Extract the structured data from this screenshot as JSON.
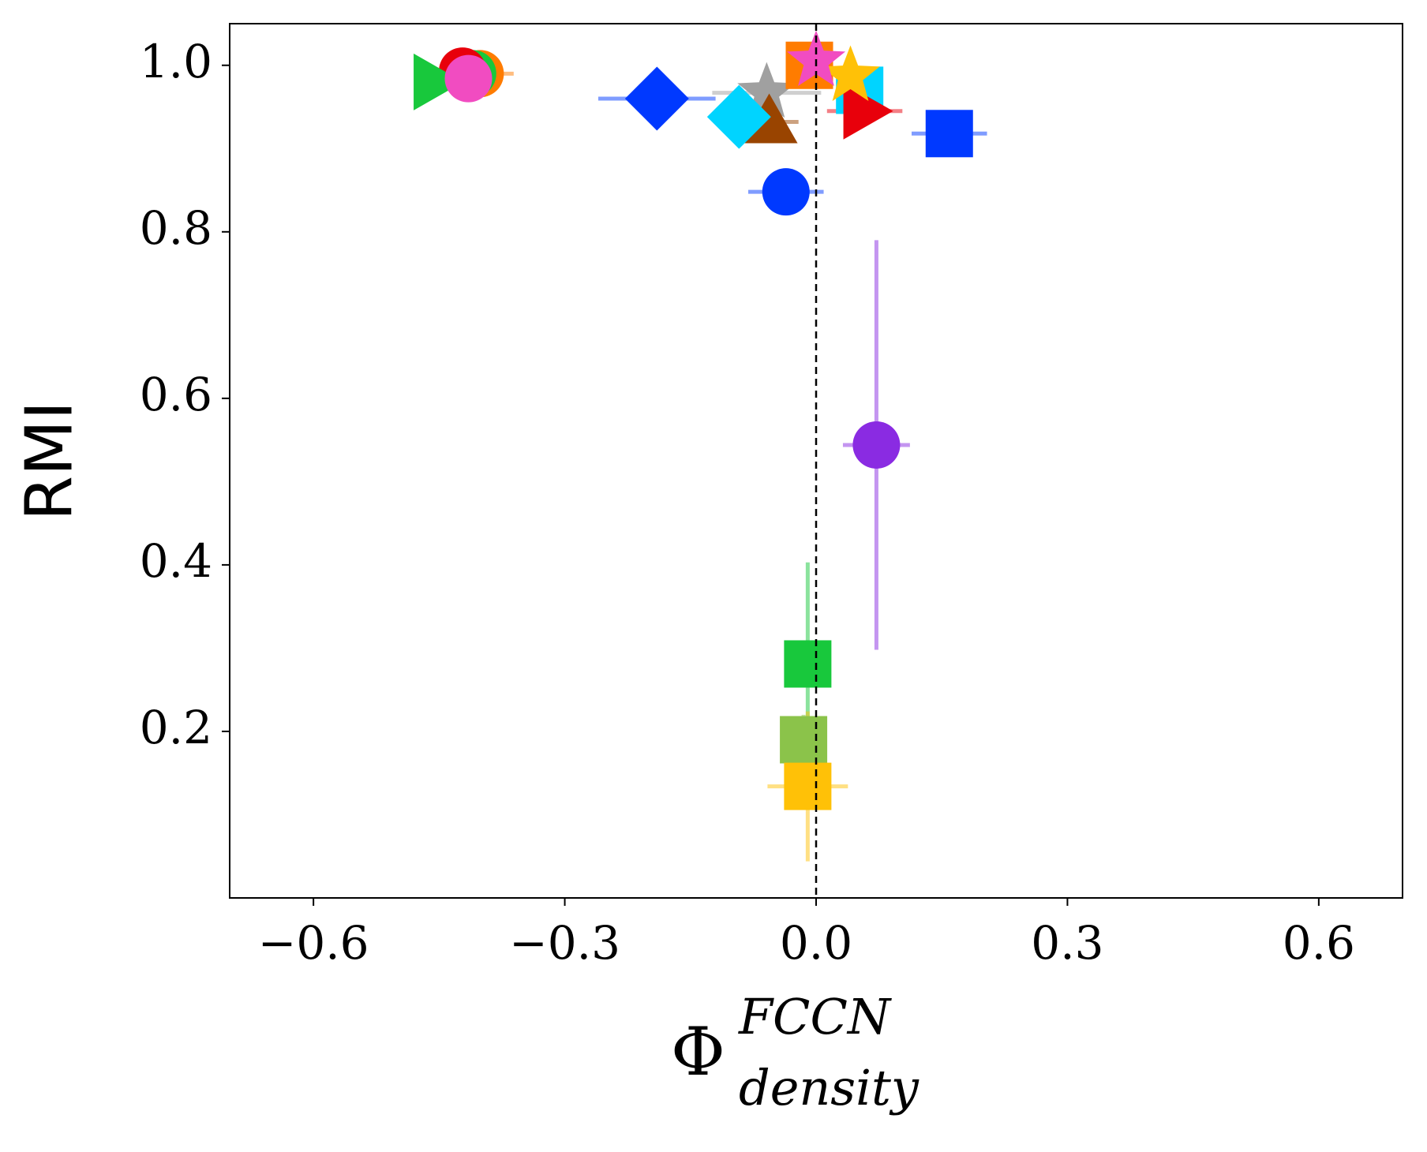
{
  "chart_data": {
    "type": "scatter",
    "ylabel": "RMI",
    "xlabel": {
      "base": "Φ",
      "sup": "FCCN",
      "sub": "density"
    },
    "xlim": [
      -0.7,
      0.7
    ],
    "ylim": [
      0,
      1.05
    ],
    "xticks": [
      {
        "value": -0.6,
        "label": "−0.6"
      },
      {
        "value": -0.3,
        "label": "−0.3"
      },
      {
        "value": 0,
        "label": "0.0"
      },
      {
        "value": 0.3,
        "label": "0.3"
      },
      {
        "value": 0.6,
        "label": "0.6"
      }
    ],
    "yticks": [
      {
        "value": 0.2,
        "label": "0.2"
      },
      {
        "value": 0.4,
        "label": "0.4"
      },
      {
        "value": 0.6,
        "label": "0.6"
      },
      {
        "value": 0.8,
        "label": "0.8"
      },
      {
        "value": 1.0,
        "label": "1.0"
      }
    ],
    "vline": 0,
    "points": [
      {
        "x": -0.015,
        "y": 0.19,
        "xerr": 0.01,
        "yerr": 0.03,
        "color": "#8bc34a",
        "marker": "square"
      },
      {
        "x": -0.01,
        "y": 0.281,
        "xerr": 0.01,
        "yerr": 0.122,
        "color": "#18c83c",
        "marker": "square"
      },
      {
        "x": -0.01,
        "y": 0.134,
        "xerr": 0.048,
        "yerr": 0.09,
        "color": "#ffc107",
        "marker": "square"
      },
      {
        "x": 0.072,
        "y": 0.544,
        "xerr": 0.04,
        "yerr": 0.246,
        "color": "#8a2be2",
        "marker": "circle"
      },
      {
        "x": -0.036,
        "y": 0.848,
        "xerr": 0.045,
        "yerr": 0.005,
        "color": "#0039ff",
        "marker": "circle"
      },
      {
        "x": 0.159,
        "y": 0.918,
        "xerr": 0.045,
        "yerr": 0.005,
        "color": "#0039ff",
        "marker": "square"
      },
      {
        "x": -0.19,
        "y": 0.96,
        "xerr": 0.07,
        "yerr": 0.005,
        "color": "#0039ff",
        "marker": "diamond"
      },
      {
        "x": -0.059,
        "y": 0.967,
        "xerr": 0.065,
        "yerr": 0.005,
        "color": "#a0a0a0",
        "marker": "star"
      },
      {
        "x": -0.056,
        "y": 0.932,
        "xerr": 0.035,
        "yerr": 0.005,
        "color": "#994400",
        "marker": "triangle-up"
      },
      {
        "x": -0.092,
        "y": 0.938,
        "xerr": 0.035,
        "yerr": 0.005,
        "color": "#00d4ff",
        "marker": "diamond"
      },
      {
        "x": 0.052,
        "y": 0.97,
        "xerr": 0.01,
        "yerr": 0.005,
        "color": "#00d4ff",
        "marker": "square"
      },
      {
        "x": 0.058,
        "y": 0.945,
        "xerr": 0.045,
        "yerr": 0.005,
        "color": "#e8000b",
        "marker": "triangle-right"
      },
      {
        "x": -0.008,
        "y": 1.0,
        "xerr": 0.01,
        "yerr": 0.005,
        "color": "#ff7c00",
        "marker": "square"
      },
      {
        "x": 0.041,
        "y": 0.987,
        "xerr": 0.01,
        "yerr": 0.005,
        "color": "#ffc107",
        "marker": "star"
      },
      {
        "x": 0.0,
        "y": 1.005,
        "xerr": 0.005,
        "yerr": 0.005,
        "color": "#f14cc1",
        "marker": "star"
      },
      {
        "x": -0.401,
        "y": 0.99,
        "xerr": 0.04,
        "yerr": 0.005,
        "color": "#ff7c00",
        "marker": "circle"
      },
      {
        "x": -0.41,
        "y": 0.99,
        "xerr": 0.03,
        "yerr": 0.005,
        "color": "#18c83c",
        "marker": "circle"
      },
      {
        "x": -0.422,
        "y": 0.993,
        "xerr": 0.02,
        "yerr": 0.005,
        "color": "#e8000b",
        "marker": "circle"
      },
      {
        "x": -0.455,
        "y": 0.98,
        "xerr": 0.01,
        "yerr": 0.005,
        "color": "#18c83c",
        "marker": "triangle-right"
      },
      {
        "x": -0.415,
        "y": 0.984,
        "xerr": 0.01,
        "yerr": 0.005,
        "color": "#f14cc1",
        "marker": "circle"
      }
    ]
  }
}
